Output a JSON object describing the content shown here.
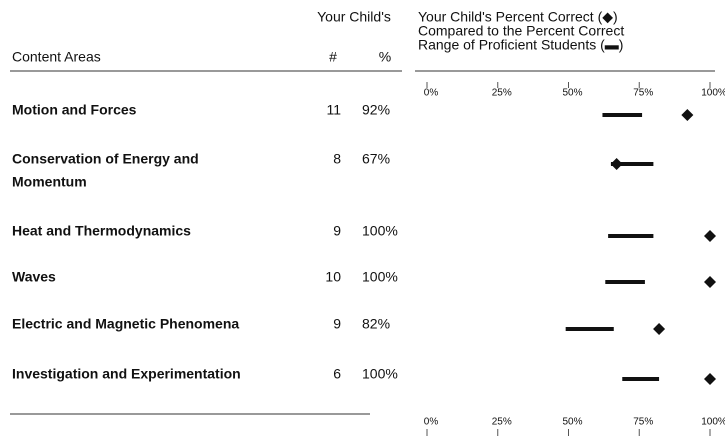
{
  "header": {
    "group": "Your Child's",
    "area": "Content Areas",
    "count": "#",
    "percent": "%",
    "chart_lines": [
      "Your Child's Percent Correct (◆)",
      "Compared to the Percent Correct",
      "Range of Proficient Students (▬)"
    ]
  },
  "chart_data": {
    "type": "range-dot",
    "xlim": [
      0,
      100
    ],
    "xticks": [
      {
        "value": 0,
        "label": "0%"
      },
      {
        "value": 25,
        "label": "25%"
      },
      {
        "value": 50,
        "label": "50%"
      },
      {
        "value": 75,
        "label": "75%"
      },
      {
        "value": 100,
        "label": "100%"
      }
    ],
    "rows": [
      {
        "area": [
          "Motion and Forces"
        ],
        "count": 11,
        "percent": {
          "value": 92,
          "label": "92%"
        },
        "range": [
          62,
          76
        ]
      },
      {
        "area": [
          "Conservation of Energy and",
          "Momentum"
        ],
        "count": 8,
        "percent": {
          "value": 67,
          "label": "67%"
        },
        "range": [
          65,
          80
        ]
      },
      {
        "area": [
          "Heat and Thermodynamics"
        ],
        "count": 9,
        "percent": {
          "value": 100,
          "label": "100%"
        },
        "range": [
          64,
          80
        ]
      },
      {
        "area": [
          "Waves"
        ],
        "count": 10,
        "percent": {
          "value": 100,
          "label": "100%"
        },
        "range": [
          63,
          77
        ]
      },
      {
        "area": [
          "Electric and Magnetic Phenomena"
        ],
        "count": 9,
        "percent": {
          "value": 82,
          "label": "82%"
        },
        "range": [
          49,
          66
        ]
      },
      {
        "area": [
          "Investigation and Experimentation"
        ],
        "count": 6,
        "percent": {
          "value": 100,
          "label": "100%"
        },
        "range": [
          69,
          82
        ]
      }
    ]
  }
}
